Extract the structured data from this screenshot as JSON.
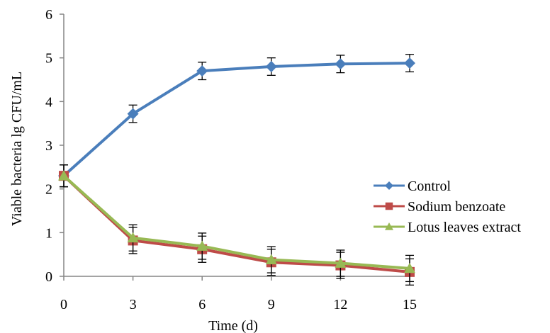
{
  "chart_data": {
    "type": "line",
    "title": "",
    "xlabel": "Time (d)",
    "ylabel": "Viable bacteria lg CFU/mL",
    "x": [
      0,
      3,
      6,
      9,
      12,
      15
    ],
    "xticks": [
      "0",
      "3",
      "6",
      "9",
      "12",
      "15"
    ],
    "yticks": [
      "0",
      "1",
      "2",
      "3",
      "4",
      "5",
      "6"
    ],
    "xlim": [
      0,
      15
    ],
    "ylim": [
      0,
      6
    ],
    "grid": false,
    "legend_position": "right",
    "series": [
      {
        "name": "Control",
        "color": "#4a7ebb",
        "marker": "diamond",
        "values": [
          2.3,
          3.72,
          4.7,
          4.8,
          4.86,
          4.88
        ],
        "errors": [
          0.25,
          0.2,
          0.2,
          0.2,
          0.2,
          0.2
        ]
      },
      {
        "name": "Sodium benzoate",
        "color": "#be4b48",
        "marker": "square",
        "values": [
          2.3,
          0.82,
          0.62,
          0.32,
          0.25,
          0.1
        ],
        "errors": [
          0.25,
          0.3,
          0.3,
          0.3,
          0.3,
          0.3
        ]
      },
      {
        "name": "Lotus leaves extract",
        "color": "#98b954",
        "marker": "triangle",
        "values": [
          2.3,
          0.88,
          0.69,
          0.38,
          0.3,
          0.18
        ],
        "errors": [
          0.25,
          0.3,
          0.3,
          0.3,
          0.3,
          0.3
        ]
      }
    ]
  }
}
